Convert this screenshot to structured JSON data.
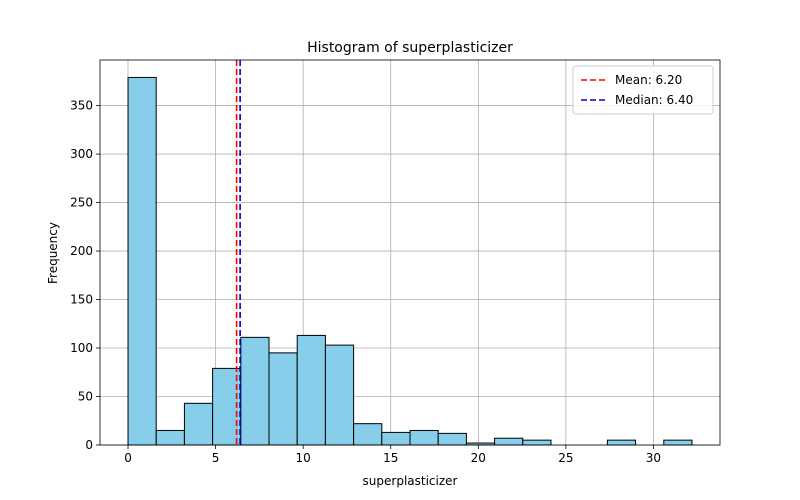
{
  "chart_data": {
    "type": "bar",
    "title": "Histogram of superplasticizer",
    "xlabel": "superplasticizer",
    "ylabel": "Frequency",
    "xlim": [
      -1.6,
      33.8
    ],
    "ylim": [
      0,
      397
    ],
    "x_ticks": [
      0,
      5,
      10,
      15,
      20,
      25,
      30
    ],
    "y_ticks": [
      0,
      50,
      100,
      150,
      200,
      250,
      300,
      350
    ],
    "bin_edges": [
      0,
      1.61,
      3.22,
      4.83,
      6.44,
      8.05,
      9.66,
      11.27,
      12.88,
      14.49,
      16.1,
      17.71,
      19.32,
      20.93,
      22.54,
      24.15,
      25.76,
      27.37,
      28.98,
      30.59,
      32.2
    ],
    "values": [
      379,
      15,
      43,
      79,
      111,
      95,
      113,
      103,
      22,
      13,
      15,
      12,
      2,
      7,
      5,
      0,
      0,
      5,
      0,
      5
    ],
    "grid": true,
    "bar_color": "#87ceeb",
    "bar_edge_color": "#000000",
    "reference_lines": [
      {
        "label": "Mean: 6.20",
        "value": 6.2,
        "color": "#ff0000",
        "style": "dashed"
      },
      {
        "label": "Median: 6.40",
        "value": 6.4,
        "color": "#0000cc",
        "style": "dashed"
      }
    ],
    "legend_position": "top-right"
  }
}
